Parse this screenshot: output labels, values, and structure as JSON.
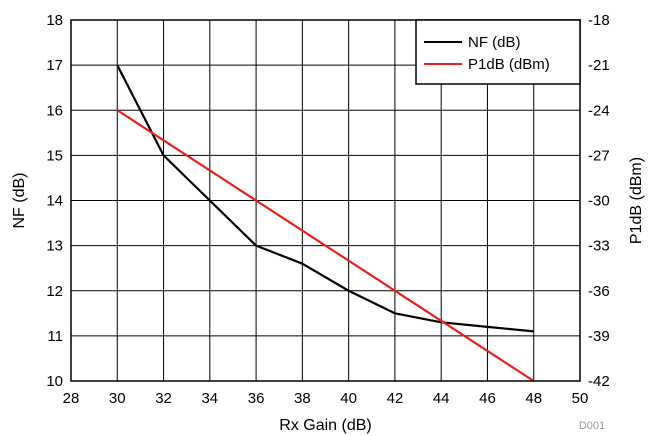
{
  "chart_data": {
    "type": "line",
    "xlabel": "Rx Gain (dB)",
    "ylabel": "NF (dB)",
    "y2label": "P1dB (dBm)",
    "xlim": [
      28,
      50
    ],
    "ylim": [
      10,
      18
    ],
    "y2lim": [
      -42,
      -18
    ],
    "x_ticks": [
      "28",
      "30",
      "32",
      "34",
      "36",
      "38",
      "40",
      "42",
      "44",
      "46",
      "48",
      "50"
    ],
    "y_ticks": [
      "10",
      "11",
      "12",
      "13",
      "14",
      "15",
      "16",
      "17",
      "18"
    ],
    "y2_ticks": [
      "-42",
      "-39",
      "-36",
      "-33",
      "-30",
      "-27",
      "-24",
      "-21",
      "-18"
    ],
    "grid": true,
    "legend_position": "top-right",
    "series": [
      {
        "name": "NF (dB)",
        "axis": "left",
        "color": "#000000",
        "x": [
          30,
          32,
          34,
          36,
          38,
          40,
          42,
          44,
          46,
          48
        ],
        "y": [
          17.0,
          15.0,
          14.0,
          13.0,
          12.6,
          12.0,
          11.5,
          11.3,
          11.2,
          11.1
        ]
      },
      {
        "name": "P1dB (dBm)",
        "axis": "right",
        "color": "#e8201c",
        "x": [
          30,
          48
        ],
        "y": [
          -24,
          -42
        ]
      }
    ],
    "footnote": "D001"
  }
}
